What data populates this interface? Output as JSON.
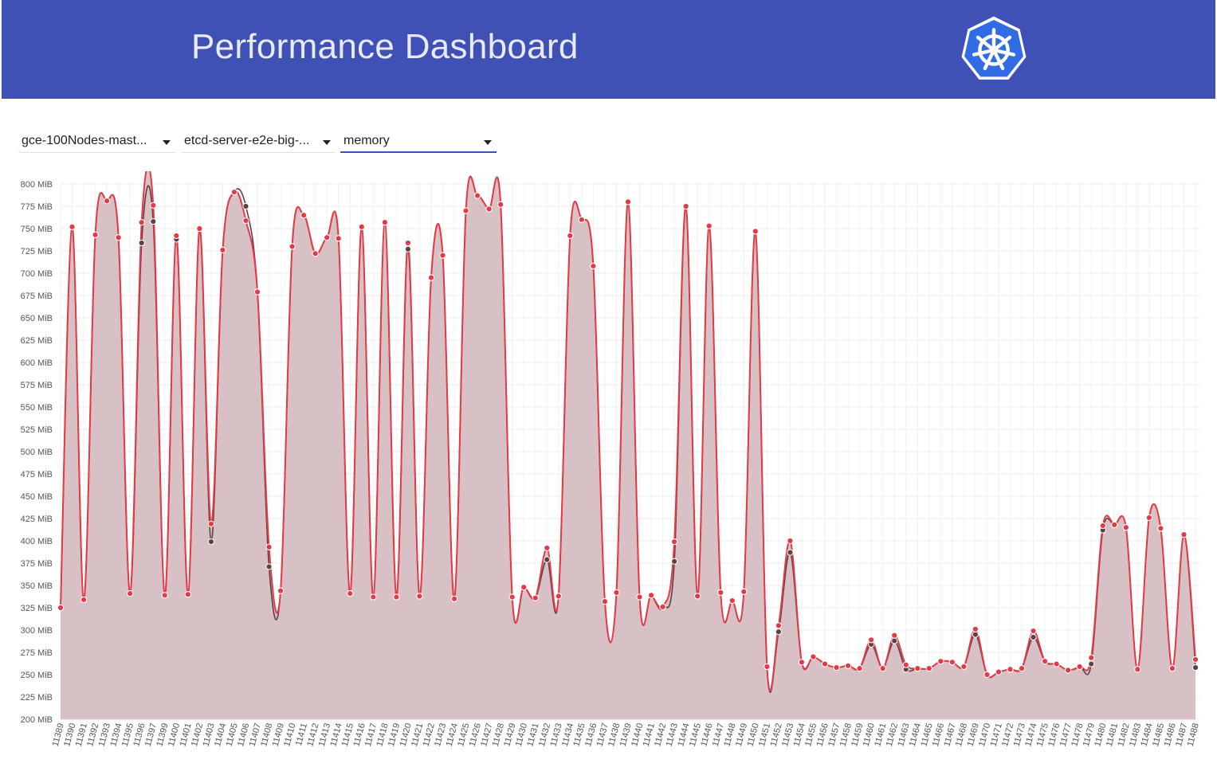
{
  "header": {
    "title": "Performance Dashboard",
    "logo": "kubernetes-logo"
  },
  "controls": {
    "job": "gce-100Nodes-mast...",
    "component": "etcd-server-e2e-big-...",
    "metric": "memory"
  },
  "colors": {
    "header_bg": "#3f51b5",
    "series_primary": "#e53945",
    "series_secondary": "#5d4148",
    "area_fill": "#d1b6bb"
  },
  "chart_data": {
    "type": "area",
    "title": "",
    "xlabel": "",
    "ylabel": "",
    "y_unit": "MiB",
    "ylim": [
      200,
      800
    ],
    "ytick_step": 25,
    "grid": true,
    "x": [
      "11389",
      "11390",
      "11391",
      "11392",
      "11393",
      "11394",
      "11395",
      "11396",
      "11397",
      "11399",
      "11400",
      "11401",
      "11402",
      "11403",
      "11404",
      "11405",
      "11406",
      "11407",
      "11408",
      "11409",
      "11410",
      "11411",
      "11412",
      "11413",
      "11414",
      "11415",
      "11416",
      "11417",
      "11418",
      "11419",
      "11420",
      "11421",
      "11422",
      "11423",
      "11424",
      "11425",
      "11426",
      "11427",
      "11428",
      "11429",
      "11430",
      "11431",
      "11432",
      "11433",
      "11434",
      "11435",
      "11436",
      "11437",
      "11438",
      "11439",
      "11440",
      "11441",
      "11442",
      "11443",
      "11444",
      "11445",
      "11446",
      "11447",
      "11448",
      "11449",
      "11450",
      "11451",
      "11452",
      "11453",
      "11454",
      "11455",
      "11456",
      "11457",
      "11458",
      "11459",
      "11460",
      "11461",
      "11462",
      "11463",
      "11464",
      "11465",
      "11466",
      "11467",
      "11468",
      "11469",
      "11470",
      "11471",
      "11472",
      "11473",
      "11474",
      "11475",
      "11476",
      "11477",
      "11478",
      "11479",
      "11480",
      "11481",
      "11482",
      "11483",
      "11484",
      "11485",
      "11486",
      "11487",
      "11488"
    ],
    "series": [
      {
        "values": [
          325,
          752,
          334,
          743,
          781,
          740,
          341,
          757,
          776,
          339,
          742,
          340,
          750,
          419,
          726,
          791,
          759,
          679,
          393,
          344,
          730,
          765,
          722,
          740,
          739,
          341,
          752,
          337,
          757,
          337,
          734,
          338,
          695,
          720,
          335,
          770,
          787,
          772,
          777,
          337,
          348,
          336,
          392,
          338,
          742,
          760,
          708,
          332,
          342,
          780,
          337,
          339,
          326,
          399,
          775,
          338,
          753,
          342,
          333,
          343,
          747,
          259,
          305,
          400,
          264,
          270,
          262,
          258,
          260,
          257,
          289,
          257,
          294,
          261,
          257,
          257,
          265,
          264,
          259,
          301,
          250,
          253,
          256,
          257,
          299,
          265,
          262,
          255,
          259,
          269,
          417,
          418,
          415,
          256,
          426,
          414,
          257,
          407,
          267
        ]
      },
      {
        "values": [
          325,
          752,
          334,
          743,
          781,
          740,
          341,
          734,
          758,
          339,
          738,
          340,
          750,
          399,
          726,
          791,
          775,
          679,
          371,
          344,
          730,
          765,
          722,
          740,
          739,
          341,
          752,
          337,
          757,
          337,
          727,
          338,
          695,
          720,
          335,
          770,
          787,
          772,
          777,
          337,
          348,
          336,
          379,
          338,
          742,
          760,
          708,
          332,
          342,
          780,
          337,
          339,
          326,
          377,
          775,
          338,
          753,
          342,
          333,
          343,
          747,
          259,
          298,
          387,
          264,
          270,
          262,
          258,
          260,
          257,
          284,
          257,
          288,
          256,
          257,
          257,
          265,
          264,
          259,
          295,
          250,
          253,
          256,
          257,
          292,
          265,
          262,
          255,
          259,
          262,
          412,
          418,
          415,
          256,
          426,
          414,
          257,
          407,
          258
        ]
      }
    ]
  }
}
